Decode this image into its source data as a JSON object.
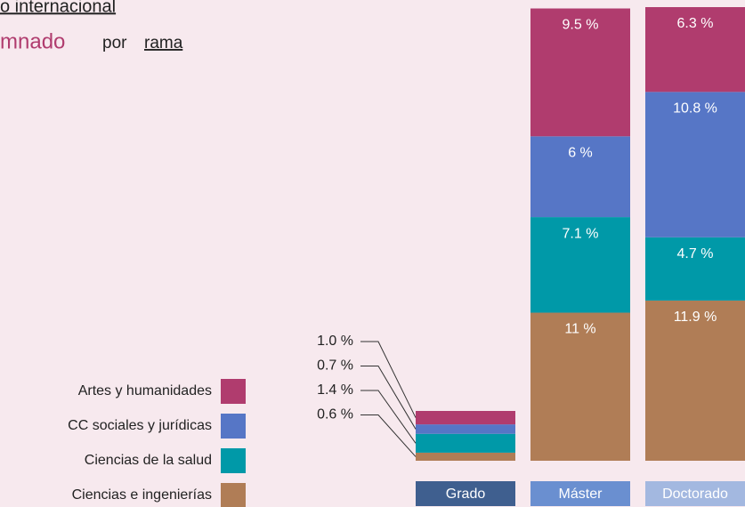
{
  "chart_data": {
    "type": "stacked-bar",
    "title": "o internacional",
    "subtitle": [
      "mnado",
      "por",
      "rama"
    ],
    "categories": [
      "Grado",
      "Máster",
      "Doctorado"
    ],
    "category_colors": [
      "#3f5f8f",
      "#6a8fd0",
      "#a3b8e0"
    ],
    "series": [
      {
        "name": "Artes y humanidades",
        "color": "#b03c6e",
        "values": [
          1.0,
          9.5,
          6.3
        ],
        "value_labels": [
          "1.0 %",
          "9.5 %",
          "6.3 %"
        ]
      },
      {
        "name": "CC sociales y jurídicas",
        "color": "#5676c6",
        "values": [
          0.7,
          6,
          10.8
        ],
        "value_labels": [
          "0.7 %",
          "6 %",
          "10.8 %"
        ]
      },
      {
        "name": "Ciencias de la salud",
        "color": "#0099a8",
        "values": [
          1.4,
          7.1,
          4.7
        ],
        "value_labels": [
          "1.4 %",
          "7.1 %",
          "4.7 %"
        ]
      },
      {
        "name": "Ciencias e ingenierías",
        "color": "#b07d56",
        "values": [
          0.6,
          11,
          11.9
        ],
        "value_labels": [
          "0.6 %",
          "11 %",
          "11.9 %"
        ]
      }
    ],
    "ylim": [
      0,
      33.7
    ]
  }
}
